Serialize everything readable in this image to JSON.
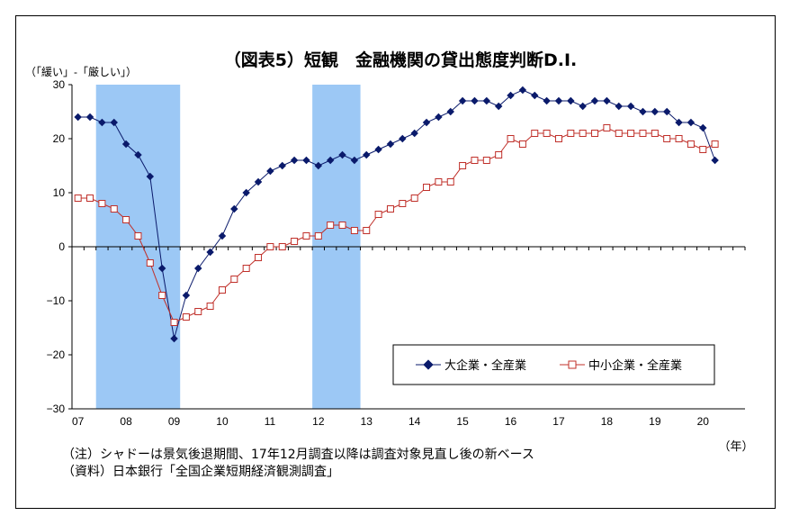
{
  "chart_data": {
    "type": "line",
    "title": "（図表5）短観　金融機関の貸出態度判断D.I.",
    "ylabel": "（「緩い」-「厳しい」）",
    "xunit": "（年）",
    "ylim": [
      -30,
      30
    ],
    "yticks": [
      30,
      20,
      10,
      0,
      -10,
      -20,
      -30
    ],
    "xticks": [
      "07",
      "08",
      "09",
      "10",
      "11",
      "12",
      "13",
      "14",
      "15",
      "16",
      "17",
      "18",
      "19",
      "20"
    ],
    "legend_position": "lower-right",
    "grid": false,
    "shaded_periods": [
      {
        "start": "2007Q3",
        "end": "2009Q1"
      },
      {
        "start": "2012Q1",
        "end": "2012Q4"
      }
    ],
    "x": [
      "2007Q1",
      "2007Q2",
      "2007Q3",
      "2007Q4",
      "2008Q1",
      "2008Q2",
      "2008Q3",
      "2008Q4",
      "2009Q1",
      "2009Q2",
      "2009Q3",
      "2009Q4",
      "2010Q1",
      "2010Q2",
      "2010Q3",
      "2010Q4",
      "2011Q1",
      "2011Q2",
      "2011Q3",
      "2011Q4",
      "2012Q1",
      "2012Q2",
      "2012Q3",
      "2012Q4",
      "2013Q1",
      "2013Q2",
      "2013Q3",
      "2013Q4",
      "2014Q1",
      "2014Q2",
      "2014Q3",
      "2014Q4",
      "2015Q1",
      "2015Q2",
      "2015Q3",
      "2015Q4",
      "2016Q1",
      "2016Q2",
      "2016Q3",
      "2016Q4",
      "2017Q1",
      "2017Q2",
      "2017Q3",
      "2017Q4",
      "2018Q1",
      "2018Q2",
      "2018Q3",
      "2018Q4",
      "2019Q1",
      "2019Q2",
      "2019Q3",
      "2019Q4",
      "2020Q1",
      "2020Q2"
    ],
    "series": [
      {
        "name": "大企業・全産業",
        "color": "#0a1a6b",
        "marker": "diamond",
        "values": [
          24,
          24,
          23,
          23,
          19,
          17,
          13,
          -4,
          -17,
          -9,
          -4,
          -1,
          2,
          7,
          10,
          12,
          14,
          15,
          16,
          16,
          15,
          16,
          17,
          16,
          17,
          18,
          19,
          20,
          21,
          23,
          24,
          25,
          27,
          27,
          27,
          26,
          28,
          29,
          28,
          27,
          27,
          27,
          26,
          27,
          27,
          26,
          26,
          25,
          25,
          25,
          23,
          23,
          22,
          16
        ]
      },
      {
        "name": "中小企業・全産業",
        "color": "#c0302a",
        "marker": "square",
        "values": [
          9,
          9,
          8,
          7,
          5,
          2,
          -3,
          -9,
          -14,
          -13,
          -12,
          -11,
          -8,
          -6,
          -4,
          -2,
          0,
          0,
          1,
          2,
          2,
          4,
          4,
          3,
          3,
          6,
          7,
          8,
          9,
          11,
          12,
          12,
          15,
          16,
          16,
          17,
          20,
          19,
          21,
          21,
          20,
          21,
          21,
          21,
          22,
          21,
          21,
          21,
          21,
          20,
          20,
          19,
          18,
          19
        ]
      }
    ]
  },
  "footnotes": {
    "note": "（注）シャドーは景気後退期間、17年12月調査以降は調査対象見直し後の新ベース",
    "source": "（資料）日本銀行「全国企業短期経済観測調査」"
  },
  "colors": {
    "shade": "#9cc8f5",
    "line_large": "#0a1a6b",
    "line_small": "#c0302a"
  }
}
